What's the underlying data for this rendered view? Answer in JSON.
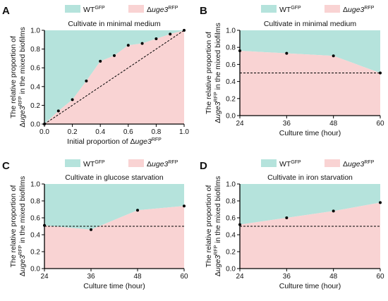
{
  "colors": {
    "wt": "#b5e3dc",
    "mut": "#f9d3d3",
    "dash": "#000000",
    "axis": "#000000",
    "point": "#000000"
  },
  "legend": {
    "wt_base": "WT",
    "wt_sup": "GFP",
    "mut_delta": "Δ",
    "mut_gene": "uge3",
    "mut_sup": "RFP"
  },
  "ylabel": {
    "line1": "The relative proportion of",
    "line2_delta": "Δ",
    "line2_gene": "uge3",
    "line2_sup": "RFP",
    "line2_rest": " in the mixed biofilms"
  },
  "chart_data": [
    {
      "label": "A",
      "type": "area",
      "title": "Cultivate in minimal medium",
      "xlabel_prefix": "Initial proportion of Δ",
      "xlabel_gene": "uge3",
      "xlabel_sup": "RFP",
      "xlim": [
        0,
        1.0
      ],
      "ylim": [
        0,
        1.0
      ],
      "xticks": [
        "0.0",
        "0.2",
        "0.4",
        "0.6",
        "0.8",
        "1.0"
      ],
      "yticks": [
        "0.0",
        "0.2",
        "0.4",
        "0.6",
        "0.8",
        "1.0"
      ],
      "x": [
        0.0,
        0.1,
        0.2,
        0.3,
        0.4,
        0.5,
        0.6,
        0.7,
        0.8,
        0.9,
        1.0
      ],
      "y": [
        0.0,
        0.14,
        0.26,
        0.46,
        0.67,
        0.73,
        0.84,
        0.86,
        0.91,
        0.96,
        1.0
      ],
      "reference": {
        "type": "diagonal",
        "from": [
          0,
          0
        ],
        "to": [
          1,
          1
        ]
      }
    },
    {
      "label": "B",
      "type": "area",
      "title": "Cultivate in minimal medium",
      "xlabel": "Culture time (hour)",
      "xlim": [
        24,
        60
      ],
      "ylim": [
        0.0,
        1.0
      ],
      "xticks": [
        "24",
        "36",
        "48",
        "60"
      ],
      "yticks": [
        "0.0",
        "0.2",
        "0.4",
        "0.6",
        "0.8",
        "1.0"
      ],
      "x": [
        24,
        36,
        48,
        60
      ],
      "y": [
        0.76,
        0.73,
        0.7,
        0.5
      ],
      "reference": {
        "type": "horizontal",
        "y": 0.5
      }
    },
    {
      "label": "C",
      "type": "area",
      "title": "Cultivate in glucose starvation",
      "xlabel": "Culture time (hour)",
      "xlim": [
        24,
        60
      ],
      "ylim": [
        0.0,
        1.0
      ],
      "xticks": [
        "24",
        "36",
        "48",
        "60"
      ],
      "yticks": [
        "0.0",
        "0.2",
        "0.4",
        "0.6",
        "0.8",
        "1.0"
      ],
      "x": [
        24,
        36,
        48,
        60
      ],
      "y": [
        0.51,
        0.46,
        0.69,
        0.74
      ],
      "reference": {
        "type": "horizontal",
        "y": 0.5
      }
    },
    {
      "label": "D",
      "type": "area",
      "title": "Cultivate in iron starvation",
      "xlabel": "Culture time (hour)",
      "xlim": [
        24,
        60
      ],
      "ylim": [
        0.0,
        1.0
      ],
      "xticks": [
        "24",
        "36",
        "48",
        "60"
      ],
      "yticks": [
        "0.0",
        "0.2",
        "0.4",
        "0.6",
        "0.8",
        "1.0"
      ],
      "x": [
        24,
        36,
        48,
        60
      ],
      "y": [
        0.52,
        0.6,
        0.68,
        0.78
      ],
      "reference": {
        "type": "horizontal",
        "y": 0.5
      }
    }
  ]
}
